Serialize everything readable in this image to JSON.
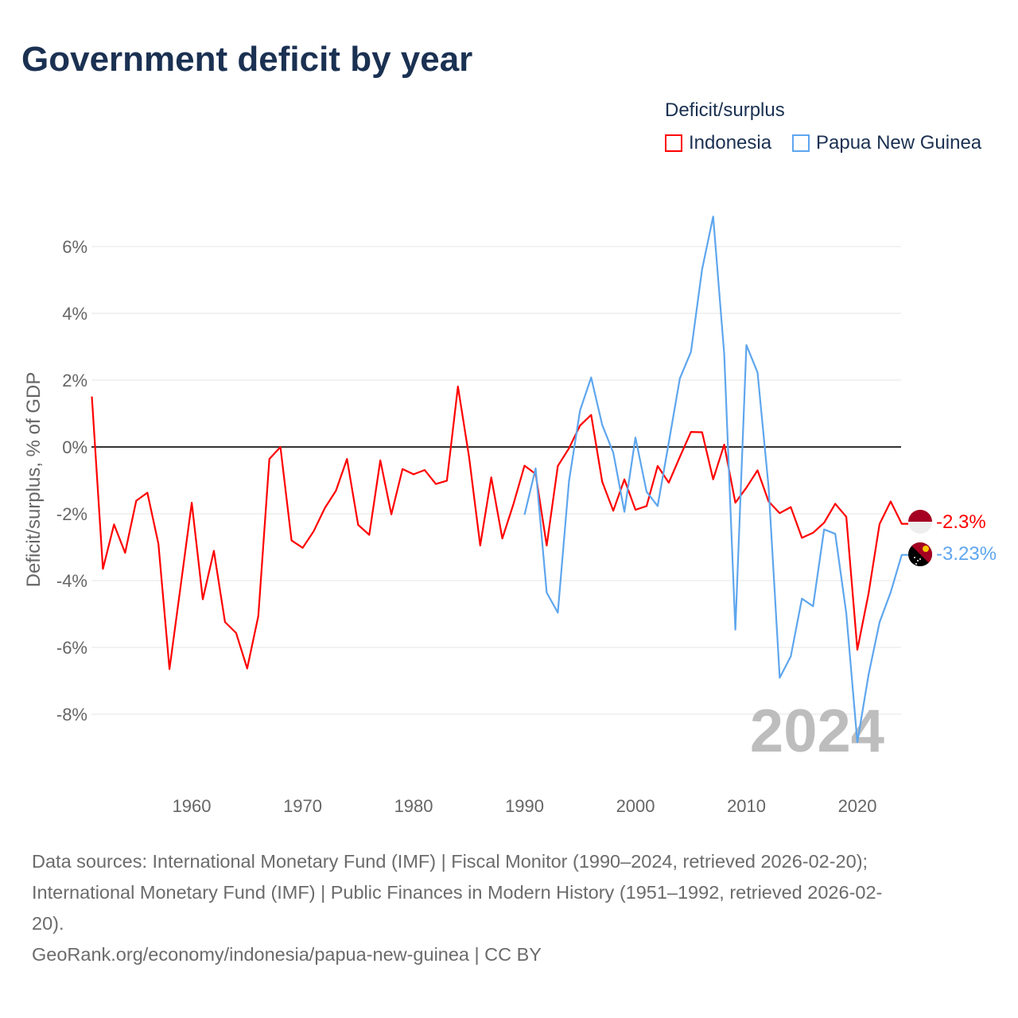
{
  "title": "Government deficit by year",
  "legend": {
    "title": "Deficit/surplus",
    "items": [
      {
        "label": "Indonesia",
        "color": "#ff0000"
      },
      {
        "label": "Papua New Guinea",
        "color": "#5ea6ee"
      }
    ]
  },
  "chart_data": {
    "type": "line",
    "title": "Government deficit by year",
    "xlabel": "",
    "ylabel": "Deficit/surplus, % of GDP",
    "xlim": [
      1951,
      2024
    ],
    "ylim": [
      -9.8,
      7.2
    ],
    "x_ticks": [
      1960,
      1970,
      1980,
      1990,
      2000,
      2010,
      2020
    ],
    "y_ticks": [
      6,
      4,
      2,
      0,
      -2,
      -4,
      -6,
      -8
    ],
    "y_tick_labels": [
      "6%",
      "4%",
      "2%",
      "0%",
      "-2%",
      "-4%",
      "-6%",
      "-8%"
    ],
    "grid": true,
    "legend_position": "top-right",
    "watermark_year": "2024",
    "series": [
      {
        "name": "Indonesia",
        "color": "#ff0000",
        "end_label": "-2.3%",
        "start_year": 1951,
        "values": [
          1.51,
          -3.65,
          -2.32,
          -3.17,
          -1.61,
          -1.37,
          -2.9,
          -6.65,
          -4.17,
          -1.67,
          -4.56,
          -3.11,
          -5.24,
          -5.57,
          -6.63,
          -5.06,
          -0.36,
          0.0,
          -2.8,
          -3.02,
          -2.52,
          -1.83,
          -1.31,
          -0.36,
          -2.33,
          -2.63,
          -0.4,
          -2.02,
          -0.66,
          -0.82,
          -0.69,
          -1.11,
          -1.01,
          1.81,
          -0.3,
          -2.95,
          -0.91,
          -2.74,
          -1.71,
          -0.56,
          -0.81,
          -2.95,
          -0.57,
          -0.04,
          0.64,
          0.96,
          -1.04,
          -1.91,
          -0.97,
          -1.88,
          -1.77,
          -0.57,
          -1.07,
          -0.3,
          0.45,
          0.44,
          -0.97,
          0.07,
          -1.67,
          -1.22,
          -0.7,
          -1.63,
          -1.98,
          -1.8,
          -2.72,
          -2.57,
          -2.27,
          -1.7,
          -2.09,
          -6.07,
          -4.4,
          -2.31,
          -1.63,
          -2.3
        ]
      },
      {
        "name": "Papua New Guinea",
        "color": "#5ea6ee",
        "end_label": "-3.23%",
        "start_year": 1990,
        "values": [
          -2.03,
          -0.64,
          -4.36,
          -4.96,
          -1.03,
          1.09,
          2.08,
          0.66,
          -0.17,
          -1.94,
          0.28,
          -1.34,
          -1.77,
          0.13,
          2.05,
          2.85,
          5.32,
          6.9,
          2.78,
          -5.47,
          3.05,
          2.23,
          -1.2,
          -6.91,
          -6.27,
          -4.54,
          -4.77,
          -2.47,
          -2.6,
          -4.98,
          -8.84,
          -6.83,
          -5.25,
          -4.35,
          -3.23
        ]
      }
    ]
  },
  "footer": {
    "sources_line1": "Data sources: International Monetary Fund (IMF) | Fiscal Monitor (1990–2024, retrieved 2026-02-20);",
    "sources_line2": "International Monetary Fund (IMF) | Public Finances in Modern History (1951–1992, retrieved 2026-02-",
    "sources_line3": "20).",
    "attribution": "GeoRank.org/economy/indonesia/papua-new-guinea | CC BY"
  }
}
